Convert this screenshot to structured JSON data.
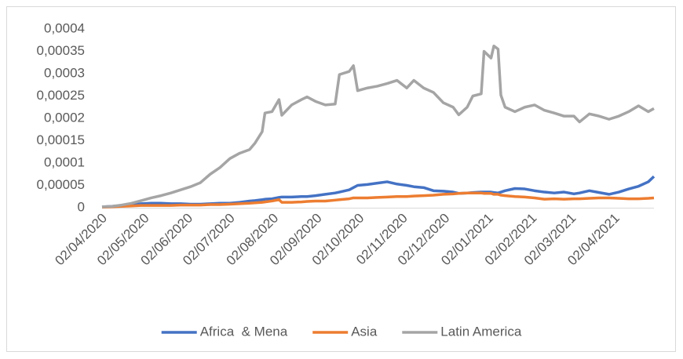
{
  "chart_data": {
    "type": "line",
    "x": [
      "02/04/2020",
      "09/04/2020",
      "16/04/2020",
      "23/04/2020",
      "30/04/2020",
      "07/05/2020",
      "14/05/2020",
      "21/05/2020",
      "28/05/2020",
      "04/06/2020",
      "11/06/2020",
      "18/06/2020",
      "25/06/2020",
      "02/07/2020",
      "09/07/2020",
      "16/07/2020",
      "20/07/2020",
      "25/07/2020",
      "27/07/2020",
      "01/08/2020",
      "06/08/2020",
      "08/08/2020",
      "15/08/2020",
      "22/08/2020",
      "26/08/2020",
      "01/09/2020",
      "08/09/2020",
      "15/09/2020",
      "18/09/2020",
      "25/09/2020",
      "28/09/2020",
      "01/10/2020",
      "08/10/2020",
      "15/10/2020",
      "22/10/2020",
      "29/10/2020",
      "05/11/2020",
      "10/11/2020",
      "17/11/2020",
      "24/11/2020",
      "01/12/2020",
      "08/12/2020",
      "12/12/2020",
      "18/12/2020",
      "22/12/2020",
      "28/12/2020",
      "30/12/2020",
      "04/01/2021",
      "06/01/2021",
      "09/01/2021",
      "11/01/2021",
      "14/01/2021",
      "21/01/2021",
      "28/01/2021",
      "04/02/2021",
      "11/02/2021",
      "18/02/2021",
      "25/02/2021",
      "04/03/2021",
      "08/03/2021",
      "15/03/2021",
      "22/03/2021",
      "29/03/2021",
      "05/04/2021",
      "12/04/2021",
      "19/04/2021",
      "26/04/2021",
      "30/04/2021"
    ],
    "series": [
      {
        "name": "Africa  & Mena",
        "color": "#4472c4",
        "values": [
          2e-06,
          3e-06,
          5e-06,
          7e-06,
          9e-06,
          1e-05,
          1e-05,
          9e-06,
          9e-06,
          8e-06,
          8e-06,
          9e-06,
          1e-05,
          1e-05,
          1.2e-05,
          1.5e-05,
          1.6e-05,
          1.8e-05,
          1.9e-05,
          2e-05,
          2.3e-05,
          2.4e-05,
          2.4e-05,
          2.5e-05,
          2.5e-05,
          2.7e-05,
          3e-05,
          3.3e-05,
          3.5e-05,
          4e-05,
          4.5e-05,
          5e-05,
          5.2e-05,
          5.5e-05,
          5.8e-05,
          5.3e-05,
          5e-05,
          4.7e-05,
          4.5e-05,
          3.8e-05,
          3.7e-05,
          3.5e-05,
          3.2e-05,
          3.3e-05,
          3.4e-05,
          3.5e-05,
          3.5e-05,
          3.5e-05,
          3.4e-05,
          3.3e-05,
          3.5e-05,
          3.8e-05,
          4.3e-05,
          4.2e-05,
          3.8e-05,
          3.5e-05,
          3.3e-05,
          3.5e-05,
          3.1e-05,
          3.3e-05,
          3.8e-05,
          3.4e-05,
          3e-05,
          3.5e-05,
          4.2e-05,
          4.8e-05,
          5.8e-05,
          7e-05
        ]
      },
      {
        "name": "Asia",
        "color": "#ed7d31",
        "values": [
          1e-06,
          2e-06,
          3e-06,
          4e-06,
          5e-06,
          5e-06,
          5e-06,
          5e-06,
          6e-06,
          6e-06,
          6e-06,
          7e-06,
          7e-06,
          8e-06,
          9e-06,
          1e-05,
          1.1e-05,
          1.2e-05,
          1.3e-05,
          1.5e-05,
          1.8e-05,
          1.2e-05,
          1.2e-05,
          1.3e-05,
          1.4e-05,
          1.5e-05,
          1.5e-05,
          1.7e-05,
          1.8e-05,
          2e-05,
          2.2e-05,
          2.2e-05,
          2.2e-05,
          2.3e-05,
          2.4e-05,
          2.5e-05,
          2.5e-05,
          2.6e-05,
          2.7e-05,
          2.8e-05,
          3e-05,
          3.1e-05,
          3.2e-05,
          3.3e-05,
          3.3e-05,
          3.3e-05,
          3.2e-05,
          3.2e-05,
          3e-05,
          3e-05,
          2.8e-05,
          2.7e-05,
          2.5e-05,
          2.4e-05,
          2.2e-05,
          1.9e-05,
          2e-05,
          1.9e-05,
          2e-05,
          2e-05,
          2.1e-05,
          2.2e-05,
          2.2e-05,
          2.1e-05,
          2e-05,
          2e-05,
          2.1e-05,
          2.2e-05
        ]
      },
      {
        "name": "Latin America",
        "color": "#a5a5a5",
        "values": [
          2e-06,
          3e-06,
          6e-06,
          1e-05,
          1.6e-05,
          2.2e-05,
          2.7e-05,
          3.3e-05,
          4e-05,
          4.7e-05,
          5.6e-05,
          7.5e-05,
          9e-05,
          0.00011,
          0.000122,
          0.00013,
          0.000145,
          0.00017,
          0.000212,
          0.000215,
          0.000242,
          0.000207,
          0.00023,
          0.000242,
          0.000248,
          0.000238,
          0.00023,
          0.000232,
          0.000298,
          0.000305,
          0.000318,
          0.000262,
          0.000268,
          0.000272,
          0.000278,
          0.000285,
          0.000268,
          0.000285,
          0.000268,
          0.000258,
          0.000235,
          0.000225,
          0.000208,
          0.000225,
          0.00025,
          0.000255,
          0.00035,
          0.000335,
          0.000362,
          0.000355,
          0.000252,
          0.000225,
          0.000215,
          0.000225,
          0.00023,
          0.000218,
          0.000212,
          0.000205,
          0.000205,
          0.000192,
          0.00021,
          0.000205,
          0.000198,
          0.000205,
          0.000215,
          0.000228,
          0.000215,
          0.000222
        ]
      }
    ],
    "xlim": [
      "02/04/2020",
      "30/04/2021"
    ],
    "xticks": [
      "02/04/2020",
      "02/05/2020",
      "02/06/2020",
      "02/07/2020",
      "02/08/2020",
      "02/09/2020",
      "02/10/2020",
      "02/11/2020",
      "02/12/2020",
      "02/01/2021",
      "02/02/2021",
      "02/03/2021",
      "02/04/2021"
    ],
    "ylim": [
      0,
      0.0004
    ],
    "yticks": [
      0,
      {
        "value": 5e-05,
        "label": "0,00005"
      },
      {
        "value": 0.0001,
        "label": "0,0001"
      },
      {
        "value": 0.00015,
        "label": "0,00015"
      },
      {
        "value": 0.0002,
        "label": "0,0002"
      },
      {
        "value": 0.00025,
        "label": "0,00025"
      },
      {
        "value": 0.0003,
        "label": "0,0003"
      },
      {
        "value": 0.00035,
        "label": "0,00035"
      },
      {
        "value": 0.0004,
        "label": "0,0004"
      }
    ],
    "grid": false,
    "legend": "bottom"
  }
}
